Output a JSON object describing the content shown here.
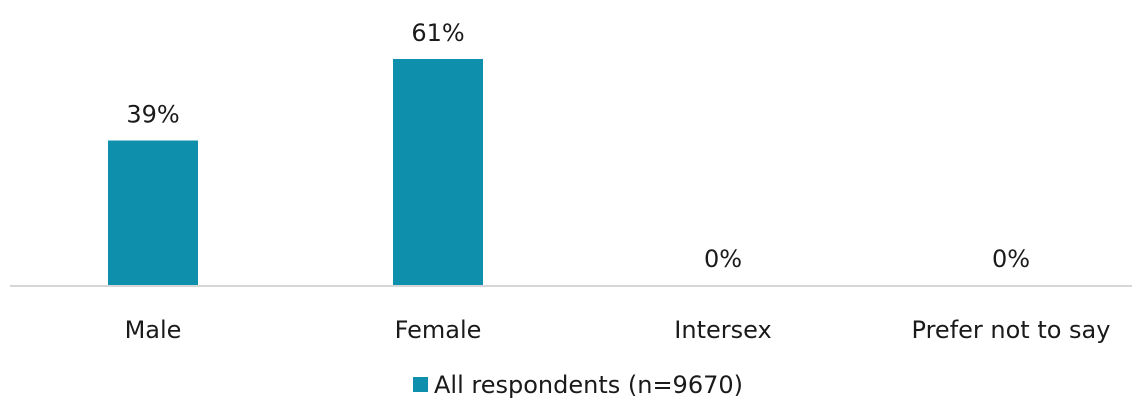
{
  "chart_data": {
    "type": "bar",
    "categories": [
      "Male",
      "Female",
      "Intersex",
      "Prefer not to say"
    ],
    "series": [
      {
        "name": "All respondents (n=9670)",
        "values": [
          39,
          61,
          0,
          0
        ],
        "color": "#0e8fab"
      }
    ],
    "data_labels": [
      "39%",
      "61%",
      "0%",
      "0%"
    ],
    "ylim": [
      0,
      70
    ],
    "grid": false,
    "legend_position": "bottom",
    "axis_color": "#c8c8c8"
  }
}
